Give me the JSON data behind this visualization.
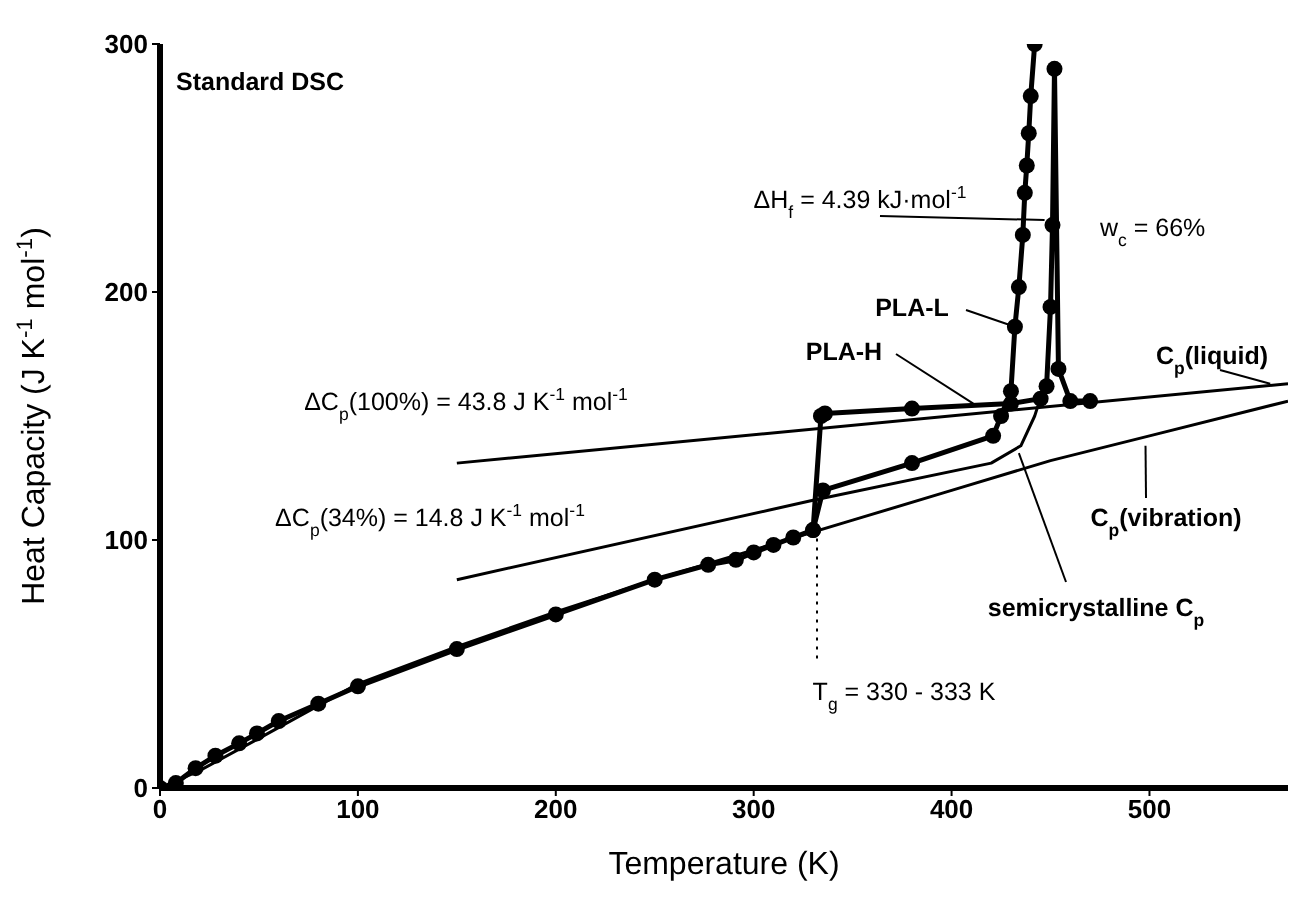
{
  "chart_data": {
    "type": "line",
    "xlabel": "Temperature  (K)",
    "ylabel": "Heat Capacity  (J K$^{-1}$  mol$^{-1}$)",
    "xlim": [
      0,
      570
    ],
    "xticks": [
      0,
      100,
      200,
      300,
      400,
      500
    ],
    "ylim": [
      0,
      300
    ],
    "yticks": [
      0,
      100,
      200,
      300
    ],
    "series": [
      {
        "color": "#000000",
        "marker": "circle",
        "x": [
          0,
          8,
          18,
          28,
          40,
          49,
          60,
          80,
          100,
          150,
          200,
          250,
          277,
          291,
          300,
          310,
          320,
          330,
          334,
          336,
          380,
          430,
          445,
          448,
          450,
          451,
          452,
          454,
          460,
          470
        ],
        "values": [
          0,
          2,
          8,
          13,
          18,
          22,
          27,
          34,
          41,
          56,
          70,
          84,
          90,
          92,
          95,
          98,
          101,
          104,
          150,
          151,
          153,
          155,
          157,
          162,
          194,
          227,
          290,
          169,
          156,
          156
        ]
      },
      {
        "color": "#000000",
        "marker": "circle",
        "x": [
          330,
          335,
          380,
          421,
          425,
          430,
          432,
          434,
          436,
          437,
          438,
          439,
          440,
          442
        ],
        "values": [
          104,
          120,
          131,
          142,
          150,
          160,
          186,
          202,
          223,
          240,
          251,
          264,
          279,
          300
        ]
      },
      {
        "color": "#000000",
        "marker": "none",
        "x": [
          0,
          20,
          50,
          100,
          150,
          200,
          250,
          300,
          350,
          400,
          450,
          500,
          570
        ],
        "values": [
          0,
          7,
          20,
          42,
          57,
          71,
          84,
          96,
          108,
          120,
          132,
          142,
          156
        ]
      },
      {
        "color": "#000000",
        "marker": "none",
        "x": [
          150,
          570
        ],
        "values": [
          131,
          163
        ]
      },
      {
        "color": "#000000",
        "marker": "none",
        "x": [
          150,
          330,
          420,
          435,
          442,
          444
        ],
        "values": [
          84,
          116,
          131,
          138,
          150,
          155
        ]
      }
    ],
    "annotations": [
      "Standard DSC",
      {
        "text": "ΔH$_{f}$ = 4.39 kJ·mol$^{-1}$",
        "x": 447,
        "y": 229
      },
      "w$_{c}$ = 66%",
      {
        "text": "PLA-L",
        "x": 432,
        "y": 186
      },
      {
        "text": "PLA-H",
        "x": 411,
        "y": 155
      },
      "ΔC$_{p}$(100%) = 43.8 J K$^{-1}$  mol$^{-1}$",
      "ΔC$_{p}$(34%) = 14.8 J K$^{-1}$  mol$^{-1}$",
      {
        "text": "C$_{p}$(liquid)",
        "x": 561,
        "y": 163
      },
      {
        "text": "C$_{p}$(vibration)",
        "x": 498,
        "y": 138
      },
      {
        "text": "semicrystalline C$_{p}$",
        "x": 434,
        "y": 135
      },
      {
        "text": "T$_{g}$ = 330 - 333 K",
        "x": 332,
        "y": 103
      }
    ]
  }
}
